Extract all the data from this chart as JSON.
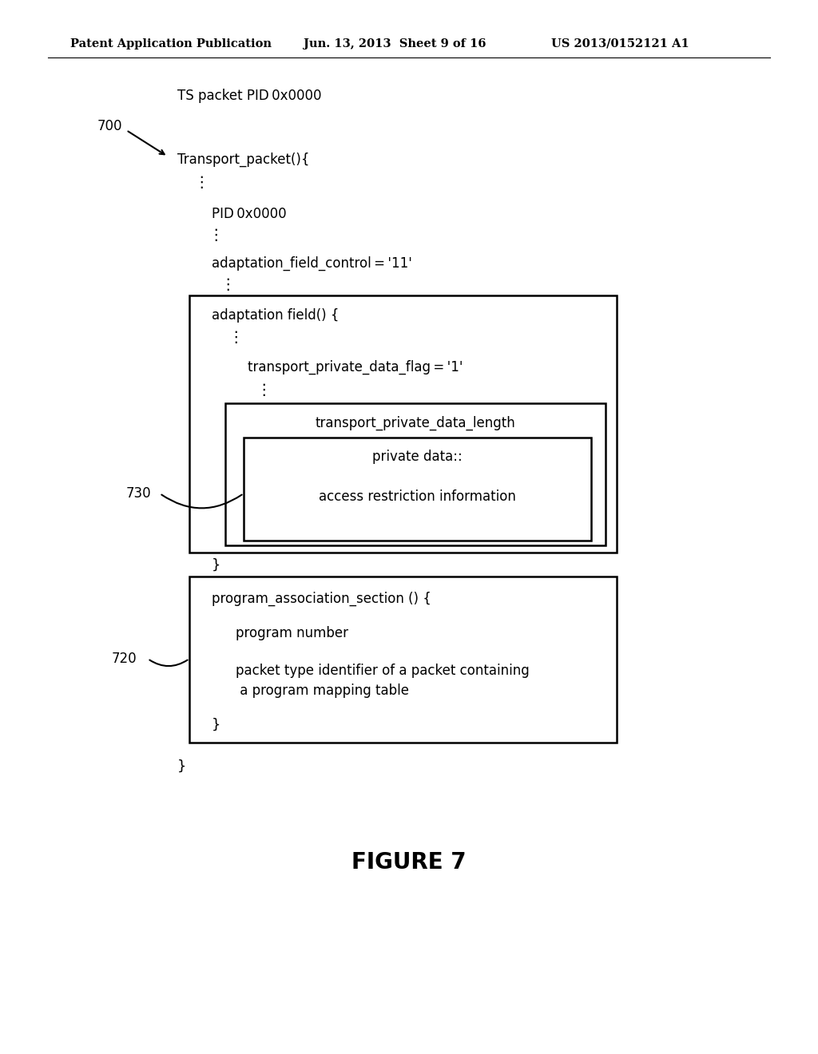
{
  "bg_color": "#ffffff",
  "header_left": "Patent Application Publication",
  "header_mid": "Jun. 13, 2013  Sheet 9 of 16",
  "header_right": "US 2013/0152121 A1",
  "figure_label": "FIGURE 7",
  "label_700": "700",
  "label_730": "730",
  "label_720": "720",
  "ts_packet_pid": "TS packet PID 0x0000",
  "transport_packet": "Transport_packet(){",
  "pid_line": "PID 0x0000",
  "adaptation_field_control": "adaptation_field_control = '11'",
  "adaptation_field_header": "adaptation field() {",
  "transport_private_data_flag": "transport_private_data_flag = '1'",
  "transport_private_data_length": "transport_private_data_length",
  "private_data": "private data::",
  "access_restriction": "access restriction information",
  "close_brace_adapt": "}",
  "program_association_section": "program_association_section () {",
  "program_number": "program number",
  "packet_type_line1": "packet type identifier of a packet containing",
  "packet_type_line2": " a program mapping table",
  "close_brace_pas": "}",
  "close_brace_outer": "}"
}
